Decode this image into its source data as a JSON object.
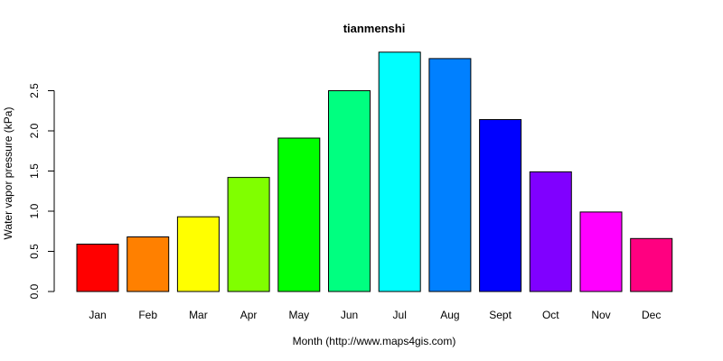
{
  "chart_data": {
    "type": "bar",
    "title": "tianmenshi",
    "xlabel": "Month (http://www.maps4gis.com)",
    "ylabel": "Water vapor pressure (kPa)",
    "categories": [
      "Jan",
      "Feb",
      "Mar",
      "Apr",
      "May",
      "Jun",
      "Jul",
      "Aug",
      "Sept",
      "Oct",
      "Nov",
      "Dec"
    ],
    "values": [
      0.59,
      0.68,
      0.93,
      1.42,
      1.91,
      2.5,
      2.98,
      2.9,
      2.14,
      1.49,
      0.99,
      0.66
    ],
    "colors": [
      "#FF0000",
      "#FF8000",
      "#FFFF00",
      "#80FF00",
      "#00FF00",
      "#00FF80",
      "#00FFFF",
      "#0080FF",
      "#0000FF",
      "#8000FF",
      "#FF00FF",
      "#FF0080"
    ],
    "yticks": [
      "0.0",
      "0.5",
      "1.0",
      "1.5",
      "2.0",
      "2.5"
    ],
    "ylim": [
      0,
      3.0
    ],
    "grid": false,
    "legend": "none"
  }
}
